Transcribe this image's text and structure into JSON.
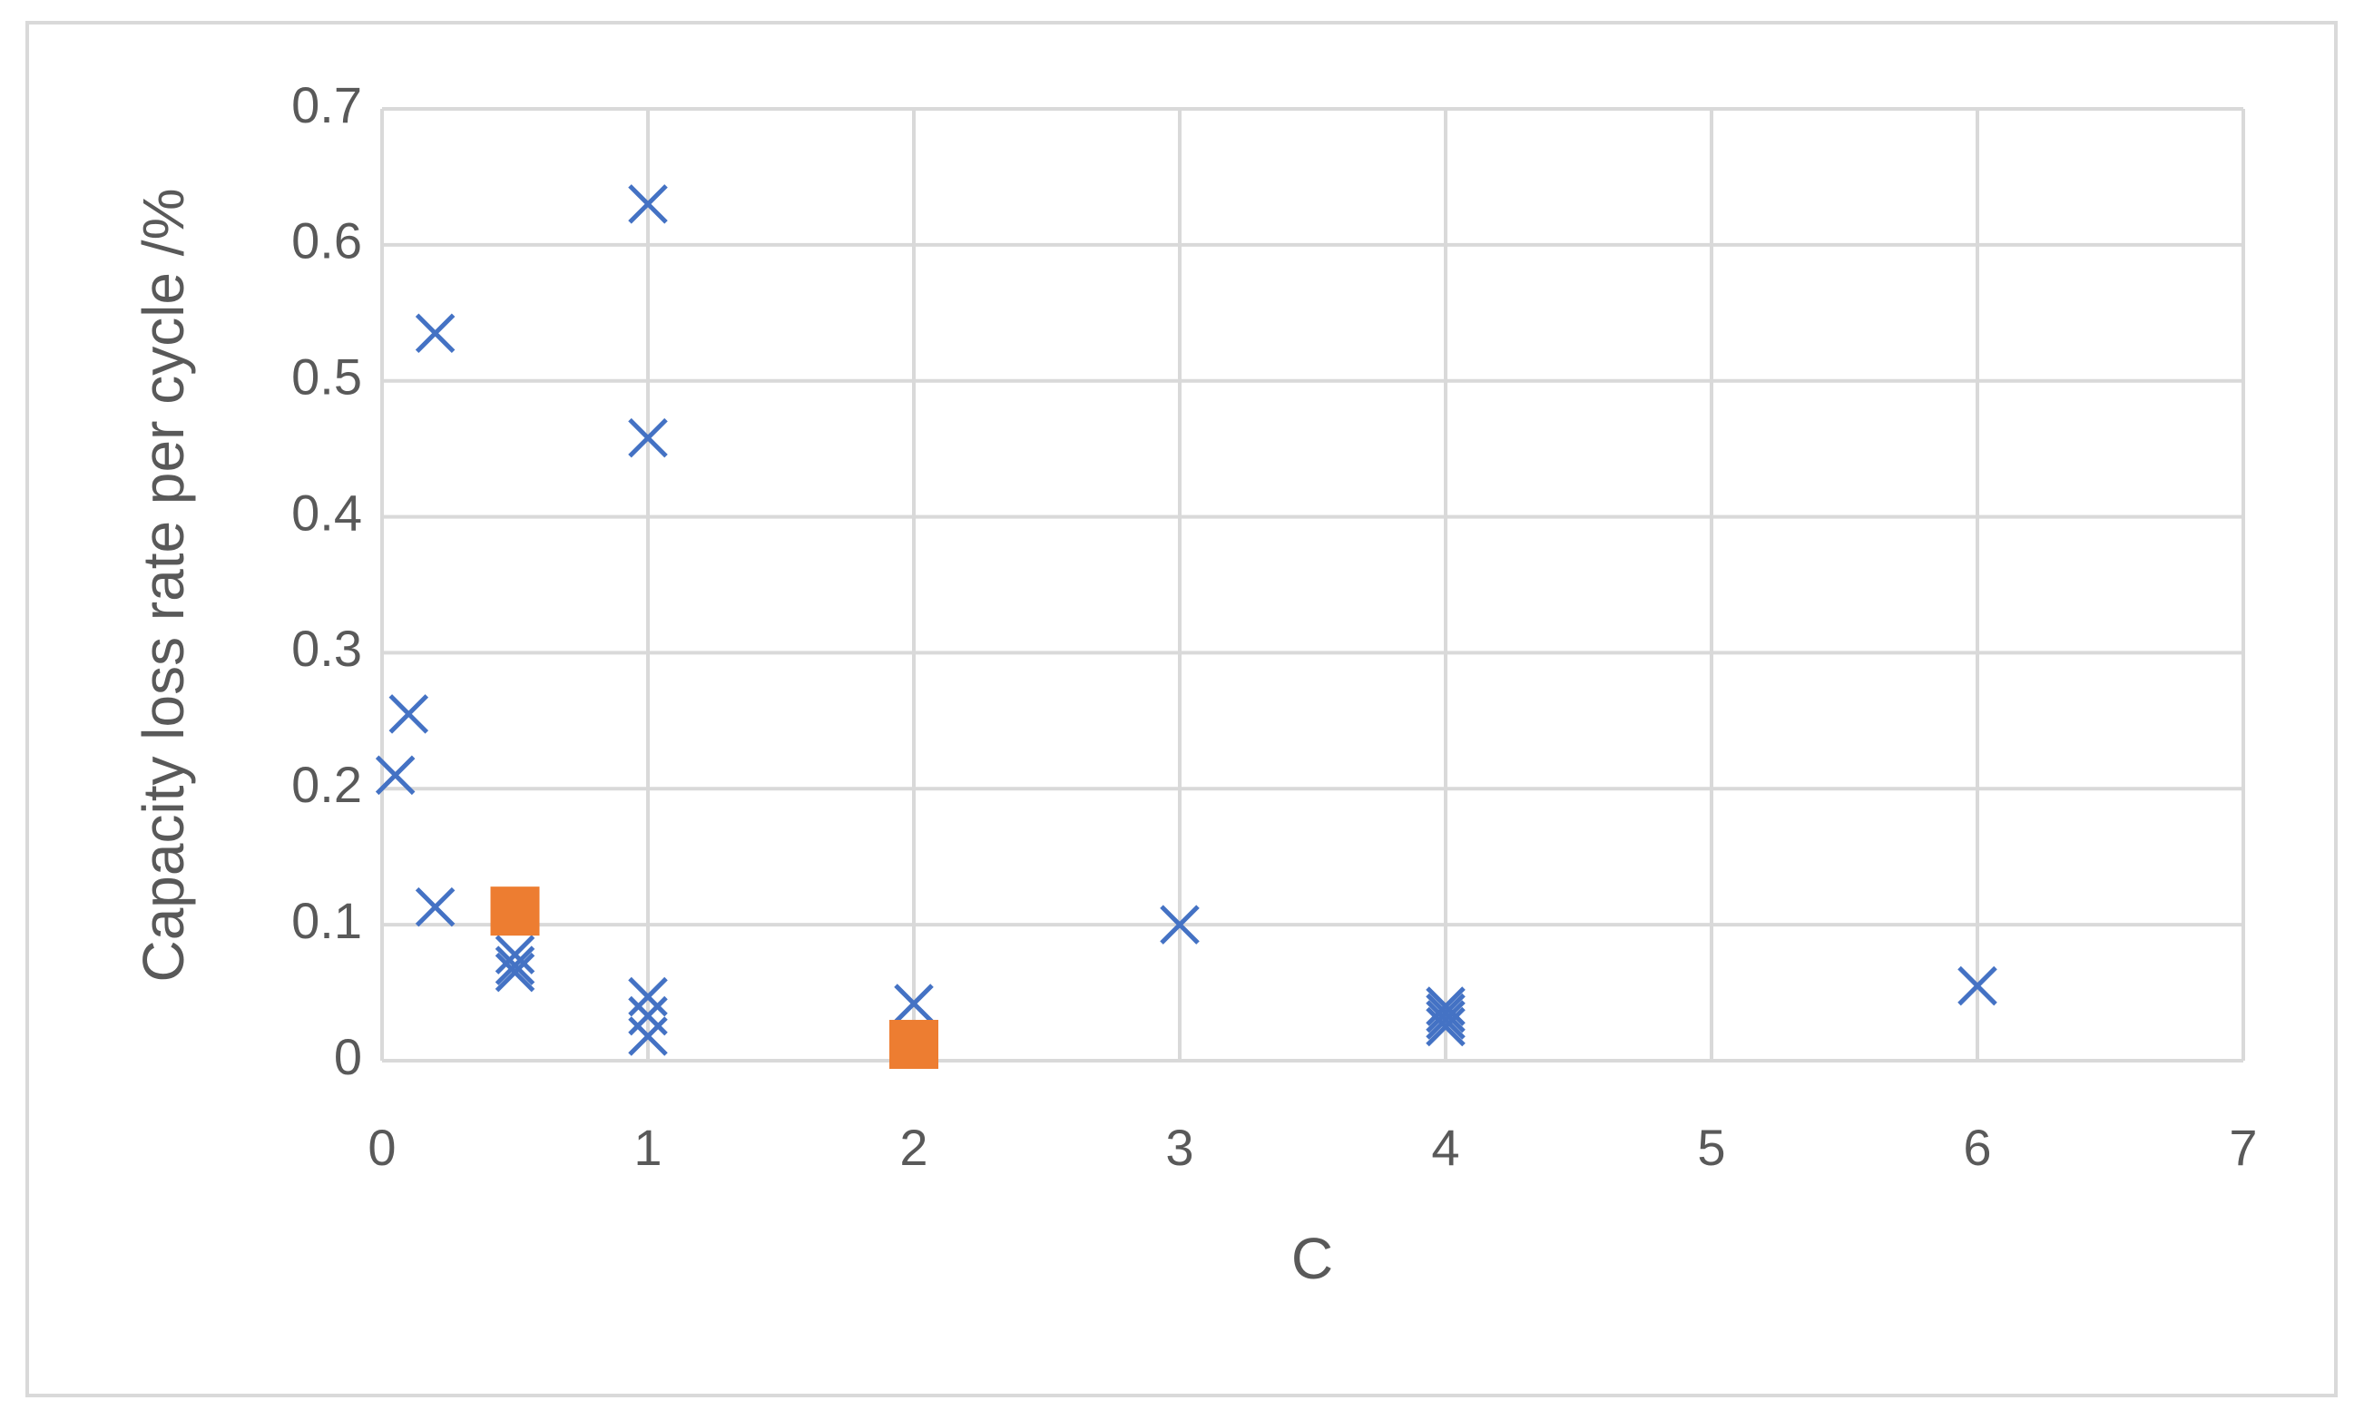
{
  "chart_data": {
    "type": "scatter",
    "xlabel": "C",
    "ylabel": "Capacity loss rate per cycle /%",
    "xlim": [
      0,
      7
    ],
    "xticks": [
      0,
      1,
      2,
      3,
      4,
      5,
      6,
      7
    ],
    "ylim": [
      0,
      0.7
    ],
    "yticks": [
      0,
      0.1,
      0.2,
      0.3,
      0.4,
      0.5,
      0.6,
      0.7
    ],
    "grid": true,
    "series": [
      {
        "color": "#4472c4",
        "marker": "x",
        "x": [
          0.05,
          0.1,
          0.2,
          0.2,
          0.5,
          0.5,
          0.5,
          1,
          1,
          1,
          1,
          1,
          2,
          3,
          4,
          4,
          4,
          4,
          6
        ],
        "values": [
          0.21,
          0.255,
          0.535,
          0.113,
          0.078,
          0.07,
          0.065,
          0.63,
          0.458,
          0.047,
          0.033,
          0.018,
          0.042,
          0.1,
          0.04,
          0.035,
          0.03,
          0.025,
          0.055
        ]
      },
      {
        "color": "#ed7d31",
        "marker": "square",
        "x": [
          0.5,
          2
        ],
        "values": [
          0.11,
          0.012
        ]
      }
    ]
  }
}
